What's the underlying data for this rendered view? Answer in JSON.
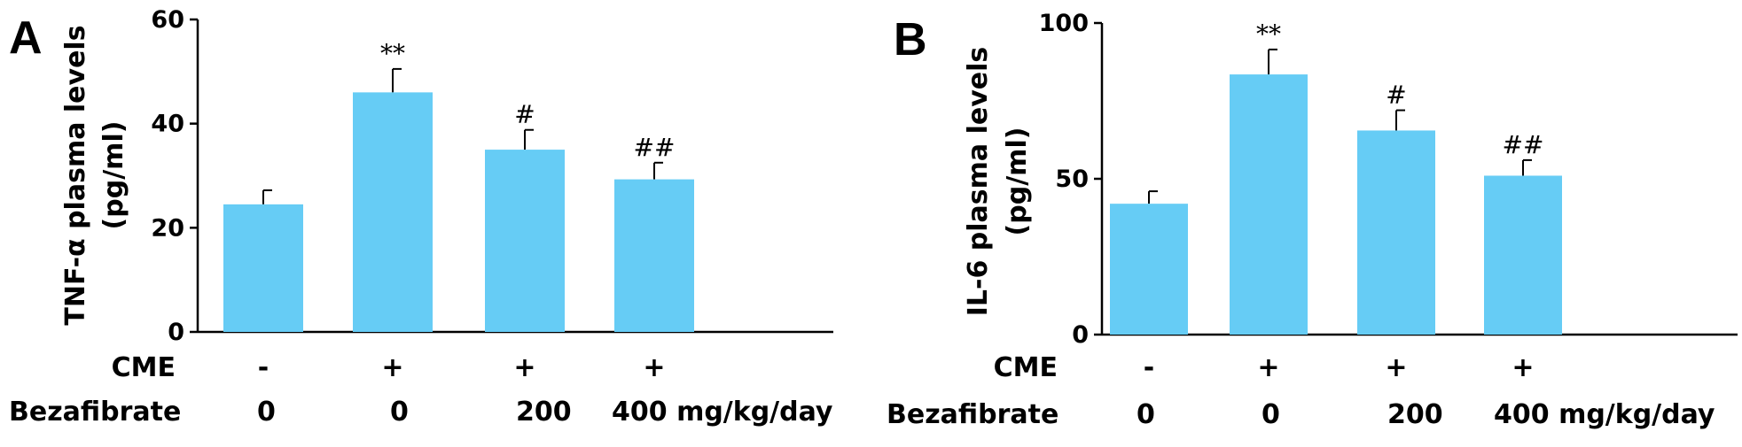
{
  "bar_color": "#66CCF5",
  "row_labels": {
    "cme": "CME",
    "bezafibrate": "Bezafibrate"
  },
  "chart_data": [
    {
      "type": "bar",
      "panel": "A",
      "ylabel_lines": [
        "TNF-α plasma levels",
        "(pg/ml)"
      ],
      "ylim": [
        0,
        60
      ],
      "yticks": [
        "0",
        "20",
        "40",
        "60"
      ],
      "cme": [
        "-",
        "+",
        "+",
        "+"
      ],
      "bezafibrate": [
        "0",
        "0",
        "200",
        "400 mg/kg/day"
      ],
      "values": [
        24.5,
        46,
        35,
        29.3
      ],
      "errors": [
        2.7,
        4.5,
        3.8,
        3.2
      ],
      "significance": [
        "",
        "**",
        "#",
        "##"
      ]
    },
    {
      "type": "bar",
      "panel": "B",
      "ylabel_lines": [
        "IL-6 plasma levels",
        "(pg/ml)"
      ],
      "ylim": [
        0,
        100
      ],
      "yticks": [
        "0",
        "50",
        "100"
      ],
      "cme": [
        "-",
        "+",
        "+",
        "+"
      ],
      "bezafibrate": [
        "0",
        "0",
        "200",
        "400 mg/kg/day"
      ],
      "values": [
        42,
        83.5,
        65.5,
        51
      ],
      "errors": [
        4,
        8,
        6.5,
        5
      ],
      "significance": [
        "",
        "**",
        "#",
        "##"
      ]
    }
  ]
}
